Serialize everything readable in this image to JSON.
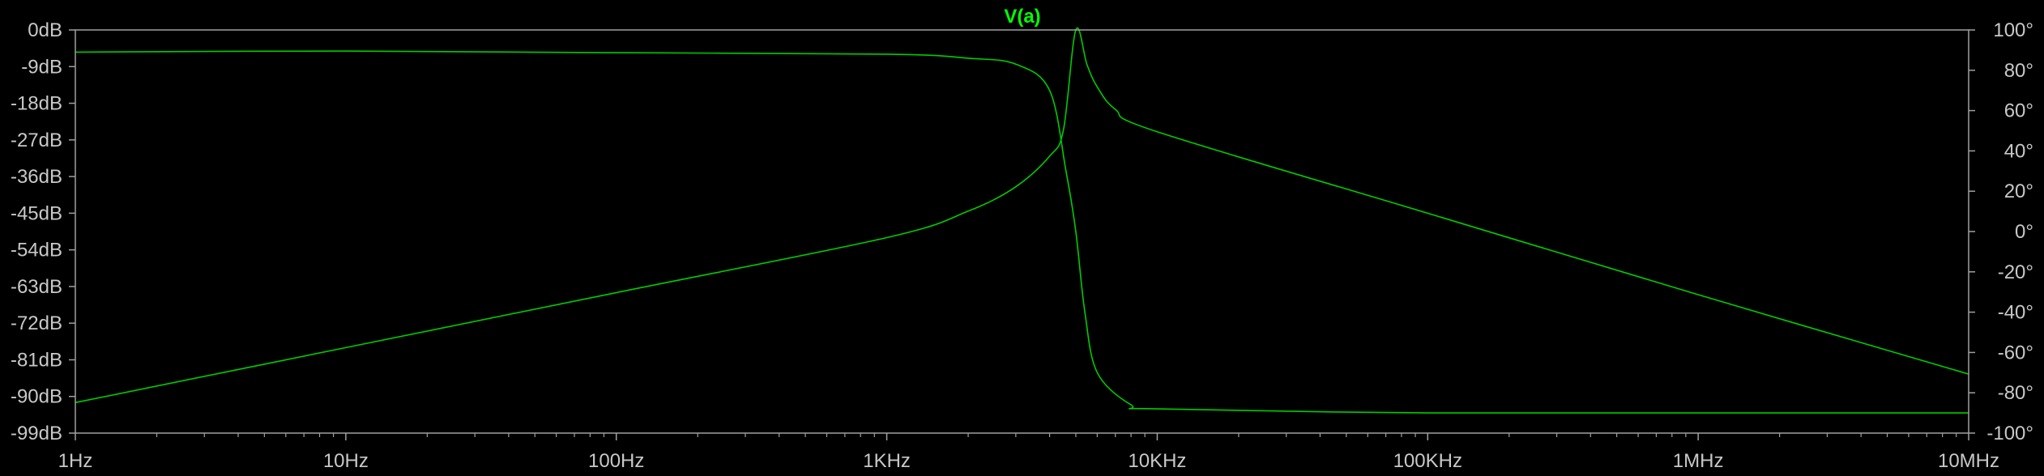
{
  "chart_data": {
    "type": "line",
    "title": "V(a)",
    "x_scale": "log",
    "xlim": [
      "1Hz",
      "10MHz"
    ],
    "x_ticks": [
      "1Hz",
      "10Hz",
      "100Hz",
      "1KHz",
      "10KHz",
      "100KHz",
      "1MHz",
      "10MHz"
    ],
    "ylim_left": [
      -99,
      0
    ],
    "y_ticks_left": [
      "0dB",
      "-9dB",
      "-18dB",
      "-27dB",
      "-36dB",
      "-45dB",
      "-54dB",
      "-63dB",
      "-72dB",
      "-81dB",
      "-90dB",
      "-99dB"
    ],
    "ylim_right": [
      -100,
      100
    ],
    "y_ticks_right": [
      "100°",
      "80°",
      "60°",
      "40°",
      "20°",
      "0°",
      "-20°",
      "-40°",
      "-60°",
      "-80°",
      "-100°"
    ],
    "colors": {
      "background": "#000000",
      "trace": "#00cc00",
      "title": "#00ff00",
      "frame": "#a0a0a0",
      "tick_text": "#c8c8c8"
    },
    "series": [
      {
        "axis": "left",
        "x": [
          "1Hz",
          "10Hz",
          "100Hz",
          "1KHz",
          "2KHz",
          "3KHz",
          "4KHz",
          "4.5KHz",
          "5KHz",
          "5.5KHz",
          "6KHz",
          "7KHz",
          "10KHz",
          "100KHz",
          "1MHz",
          "10MHz"
        ],
        "y": [
          -91.5,
          -78.0,
          -64.5,
          -51.0,
          -44.5,
          -38.5,
          -31.0,
          -24.5,
          0,
          -8.5,
          -14.0,
          -19.5,
          -25.0,
          -45.0,
          -65.0,
          -84.5
        ]
      },
      {
        "axis": "right",
        "x": [
          "1Hz",
          "10Hz",
          "100Hz",
          "1KHz",
          "2KHz",
          "3KHz",
          "4KHz",
          "4.6KHz",
          "5KHz",
          "5.4KHz",
          "6KHz",
          "8KHz",
          "10KHz",
          "100KHz",
          "1MHz",
          "10MHz"
        ],
        "y": [
          89,
          89.5,
          88.7,
          88,
          86,
          83,
          70,
          30,
          0,
          -40,
          -70,
          -86,
          -88,
          -90,
          -90,
          -90
        ]
      }
    ]
  }
}
